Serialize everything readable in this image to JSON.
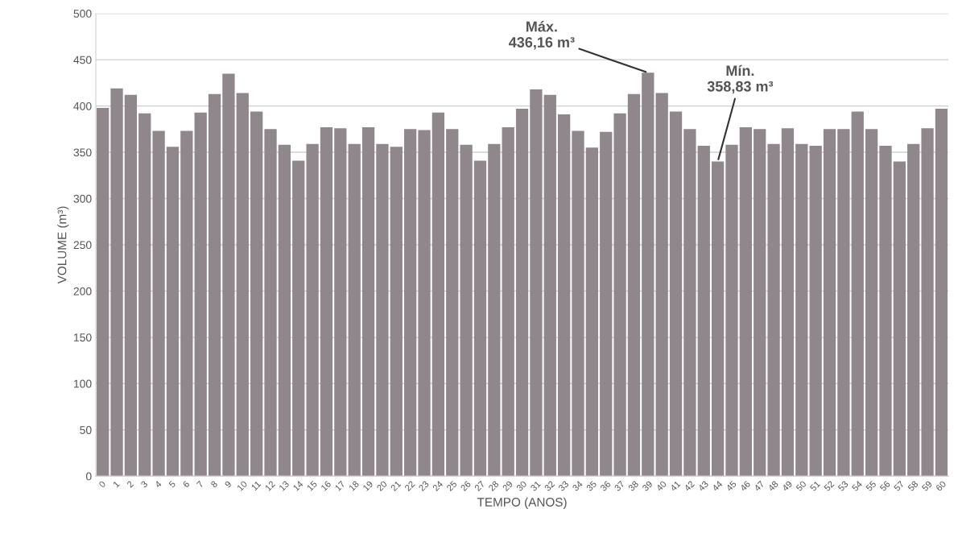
{
  "chart_data": {
    "type": "bar",
    "xlabel": "TEMPO (ANOS)",
    "ylabel": "VOLUME (m³)",
    "categories": [
      "0",
      "1",
      "2",
      "3",
      "4",
      "5",
      "6",
      "7",
      "8",
      "9",
      "10",
      "11",
      "12",
      "13",
      "14",
      "15",
      "16",
      "17",
      "18",
      "19",
      "20",
      "21",
      "22",
      "23",
      "24",
      "25",
      "26",
      "27",
      "28",
      "29",
      "30",
      "31",
      "32",
      "33",
      "34",
      "35",
      "36",
      "37",
      "38",
      "39",
      "40",
      "41",
      "42",
      "43",
      "44",
      "45",
      "46",
      "47",
      "48",
      "49",
      "50",
      "51",
      "52",
      "53",
      "54",
      "55",
      "56",
      "57",
      "58",
      "59",
      "60"
    ],
    "values": [
      398,
      419,
      412,
      392,
      373,
      356,
      373,
      393,
      413,
      435,
      414,
      394,
      375,
      358,
      341,
      359,
      377,
      376,
      359,
      377,
      359,
      356,
      375,
      374,
      393,
      375,
      358,
      341,
      359,
      377,
      397,
      418,
      412,
      391,
      373,
      355,
      372,
      392,
      413,
      436,
      414,
      394,
      375,
      357,
      340,
      358,
      377,
      375,
      359,
      376,
      359,
      357,
      375,
      375,
      394,
      375,
      357,
      340,
      359,
      376,
      397
    ],
    "color": "#8f878c",
    "ylim": [
      0,
      500
    ],
    "yticks": [
      0,
      50,
      100,
      150,
      200,
      250,
      300,
      350,
      400,
      450,
      500
    ],
    "grid": "y",
    "annotations": [
      {
        "text": "Máx.\n436,16 m³",
        "x": "39",
        "y": 436
      },
      {
        "text": "Mín.\n358,83 m³",
        "x": "44",
        "y": 340
      }
    ]
  }
}
